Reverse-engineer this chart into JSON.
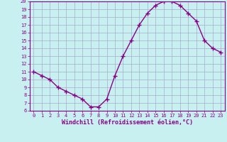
{
  "x": [
    0,
    1,
    2,
    3,
    4,
    5,
    6,
    7,
    8,
    9,
    10,
    11,
    12,
    13,
    14,
    15,
    16,
    17,
    18,
    19,
    20,
    21,
    22,
    23
  ],
  "y": [
    11.0,
    10.5,
    10.0,
    9.0,
    8.5,
    8.0,
    7.5,
    6.5,
    6.5,
    7.5,
    10.5,
    13.0,
    15.0,
    17.0,
    18.5,
    19.5,
    20.0,
    20.0,
    19.5,
    18.5,
    17.5,
    15.0,
    14.0,
    13.5
  ],
  "line_color": "#880088",
  "marker": "+",
  "marker_size": 4,
  "marker_lw": 1.0,
  "bg_color": "#c8f0f0",
  "grid_color": "#aaaacc",
  "xlabel": "Windchill (Refroidissement éolien,°C)",
  "ylim": [
    6,
    20
  ],
  "xlim": [
    -0.5,
    23.5
  ],
  "yticks": [
    6,
    7,
    8,
    9,
    10,
    11,
    12,
    13,
    14,
    15,
    16,
    17,
    18,
    19,
    20
  ],
  "xticks": [
    0,
    1,
    2,
    3,
    4,
    5,
    6,
    7,
    8,
    9,
    10,
    11,
    12,
    13,
    14,
    15,
    16,
    17,
    18,
    19,
    20,
    21,
    22,
    23
  ],
  "tick_fontsize": 5.0,
  "xlabel_fontsize": 6.0,
  "label_color": "#880088",
  "spine_color": "#880088",
  "line_width": 1.0
}
